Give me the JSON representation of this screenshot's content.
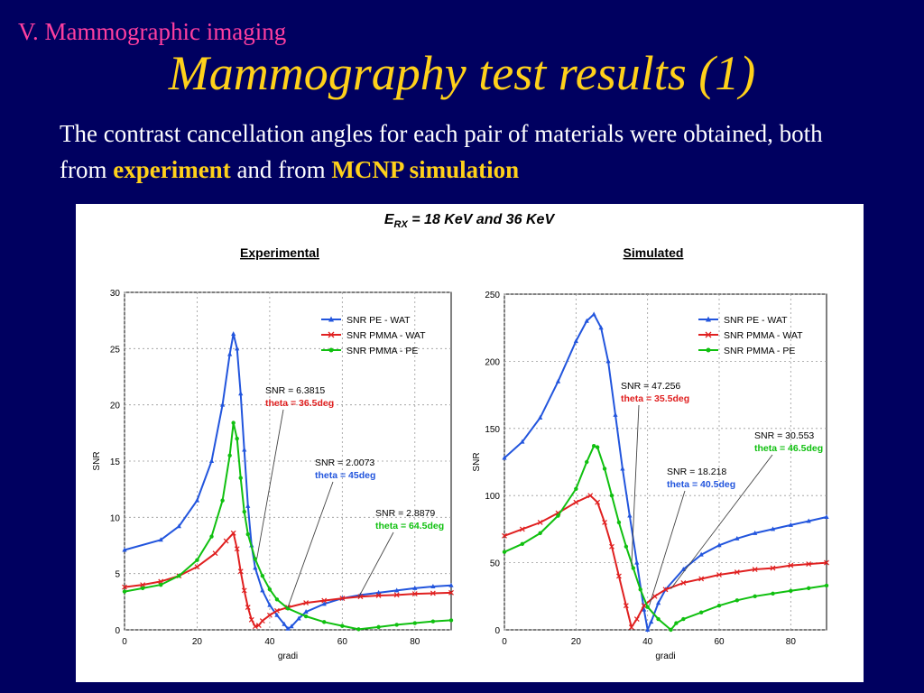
{
  "section_label": "V. Mammographic imaging",
  "slide_title": "Mammography test results (1)",
  "intro": {
    "part1": "The contrast cancellation angles for each pair of materials were obtained, both from ",
    "highlight1": "experiment",
    "part2": " and from ",
    "highlight2": "MCNP simulation"
  },
  "figure": {
    "energy_prefix": "E",
    "energy_sub": "RX",
    "energy_suffix": " = 18 KeV and 36 KeV"
  },
  "colors": {
    "pe_wat": "#2255dd",
    "pmma_wat": "#e02020",
    "pmma_pe": "#10c010"
  },
  "chart_data": [
    {
      "type": "line",
      "title": "Experimental",
      "xlabel": "gradi",
      "ylabel": "SNR",
      "xlim": [
        0,
        90
      ],
      "ylim": [
        0,
        30
      ],
      "xticks": [
        0,
        20,
        40,
        60,
        80
      ],
      "yticks": [
        0,
        5,
        10,
        15,
        20,
        25,
        30
      ],
      "grid": true,
      "legend": "top-right",
      "series": [
        {
          "name": "SNR PE - WAT",
          "color_key": "pe_wat",
          "marker": "triangle",
          "points": [
            [
              0,
              7.1
            ],
            [
              10,
              8.0
            ],
            [
              15,
              9.2
            ],
            [
              20,
              11.5
            ],
            [
              24,
              15
            ],
            [
              27,
              20
            ],
            [
              29,
              24.5
            ],
            [
              30,
              26.3
            ],
            [
              31,
              25
            ],
            [
              32,
              21
            ],
            [
              33,
              16
            ],
            [
              34,
              11
            ],
            [
              35,
              7.5
            ],
            [
              36,
              5.5
            ],
            [
              38,
              3.5
            ],
            [
              40,
              2.2
            ],
            [
              42,
              1.3
            ],
            [
              44,
              0.5
            ],
            [
              45,
              0.1
            ],
            [
              46,
              0.3
            ],
            [
              48,
              1.0
            ],
            [
              50,
              1.6
            ],
            [
              55,
              2.3
            ],
            [
              60,
              2.8
            ],
            [
              65,
              3.1
            ],
            [
              70,
              3.3
            ],
            [
              75,
              3.5
            ],
            [
              80,
              3.7
            ],
            [
              85,
              3.85
            ],
            [
              90,
              3.95
            ]
          ]
        },
        {
          "name": "SNR PMMA - WAT",
          "color_key": "pmma_wat",
          "marker": "x",
          "points": [
            [
              0,
              3.8
            ],
            [
              5,
              4.0
            ],
            [
              10,
              4.3
            ],
            [
              15,
              4.8
            ],
            [
              20,
              5.6
            ],
            [
              25,
              6.8
            ],
            [
              28,
              7.9
            ],
            [
              30,
              8.6
            ],
            [
              31,
              7.2
            ],
            [
              32,
              5.2
            ],
            [
              33,
              3.5
            ],
            [
              34,
              2.0
            ],
            [
              35,
              0.9
            ],
            [
              36,
              0.3
            ],
            [
              37,
              0.4
            ],
            [
              38,
              0.8
            ],
            [
              40,
              1.3
            ],
            [
              42,
              1.7
            ],
            [
              45,
              2.0
            ],
            [
              50,
              2.4
            ],
            [
              55,
              2.6
            ],
            [
              60,
              2.8
            ],
            [
              65,
              2.95
            ],
            [
              70,
              3.05
            ],
            [
              75,
              3.1
            ],
            [
              80,
              3.2
            ],
            [
              85,
              3.25
            ],
            [
              90,
              3.3
            ]
          ]
        },
        {
          "name": "SNR PMMA - PE",
          "color_key": "pmma_pe",
          "marker": "circle",
          "points": [
            [
              0,
              3.4
            ],
            [
              5,
              3.7
            ],
            [
              10,
              4.0
            ],
            [
              15,
              4.8
            ],
            [
              20,
              6.2
            ],
            [
              24,
              8.3
            ],
            [
              27,
              11.5
            ],
            [
              29,
              15.5
            ],
            [
              30,
              18.4
            ],
            [
              31,
              17
            ],
            [
              32,
              13.5
            ],
            [
              33,
              10.5
            ],
            [
              34,
              8.5
            ],
            [
              36,
              6.3
            ],
            [
              38,
              4.8
            ],
            [
              40,
              3.6
            ],
            [
              42,
              2.7
            ],
            [
              45,
              1.9
            ],
            [
              50,
              1.2
            ],
            [
              55,
              0.7
            ],
            [
              60,
              0.35
            ],
            [
              64.5,
              0.05
            ],
            [
              70,
              0.25
            ],
            [
              75,
              0.45
            ],
            [
              80,
              0.6
            ],
            [
              85,
              0.75
            ],
            [
              90,
              0.85
            ]
          ]
        }
      ],
      "annotations": [
        {
          "label": "SNR = 6.3815",
          "detail": "theta = 36.5deg",
          "color_key": "pmma_wat",
          "x": 36.5,
          "y": 6.38
        },
        {
          "label": "SNR = 2.0073",
          "detail": "theta = 45deg",
          "color_key": "pe_wat",
          "x": 45,
          "y": 2.0
        },
        {
          "label": "SNR = 2.8879",
          "detail": "theta = 64.5deg",
          "color_key": "pmma_pe",
          "x": 64.5,
          "y": 2.89
        }
      ]
    },
    {
      "type": "line",
      "title": "Simulated",
      "xlabel": "gradi",
      "ylabel": "SNR",
      "xlim": [
        0,
        90
      ],
      "ylim": [
        0,
        250
      ],
      "xticks": [
        0,
        20,
        40,
        60,
        80
      ],
      "yticks": [
        0,
        50,
        100,
        150,
        200,
        250
      ],
      "grid": true,
      "legend": "top-right",
      "series": [
        {
          "name": "SNR PE - WAT",
          "color_key": "pe_wat",
          "marker": "triangle",
          "points": [
            [
              0,
              128
            ],
            [
              5,
              140
            ],
            [
              10,
              158
            ],
            [
              15,
              185
            ],
            [
              20,
              215
            ],
            [
              23,
              230
            ],
            [
              25,
              235
            ],
            [
              27,
              225
            ],
            [
              29,
              200
            ],
            [
              31,
              160
            ],
            [
              33,
              120
            ],
            [
              35,
              85
            ],
            [
              37,
              50
            ],
            [
              39,
              15
            ],
            [
              40,
              0
            ],
            [
              41,
              6
            ],
            [
              43,
              20
            ],
            [
              45,
              30
            ],
            [
              50,
              45
            ],
            [
              55,
              56
            ],
            [
              60,
              63
            ],
            [
              65,
              68
            ],
            [
              70,
              72
            ],
            [
              75,
              75
            ],
            [
              80,
              78
            ],
            [
              85,
              81
            ],
            [
              90,
              84
            ]
          ]
        },
        {
          "name": "SNR PMMA - WAT",
          "color_key": "pmma_wat",
          "marker": "x",
          "points": [
            [
              0,
              70
            ],
            [
              5,
              75
            ],
            [
              10,
              80
            ],
            [
              15,
              87
            ],
            [
              20,
              95
            ],
            [
              24,
              100
            ],
            [
              26,
              95
            ],
            [
              28,
              80
            ],
            [
              30,
              62
            ],
            [
              32,
              40
            ],
            [
              34,
              18
            ],
            [
              35.5,
              2
            ],
            [
              37,
              8
            ],
            [
              39,
              18
            ],
            [
              42,
              25
            ],
            [
              45,
              30
            ],
            [
              50,
              35
            ],
            [
              55,
              38
            ],
            [
              60,
              41
            ],
            [
              65,
              43
            ],
            [
              70,
              45
            ],
            [
              75,
              46
            ],
            [
              80,
              48
            ],
            [
              85,
              49
            ],
            [
              90,
              50
            ]
          ]
        },
        {
          "name": "SNR PMMA - PE",
          "color_key": "pmma_pe",
          "marker": "circle",
          "points": [
            [
              0,
              58
            ],
            [
              5,
              64
            ],
            [
              10,
              72
            ],
            [
              15,
              85
            ],
            [
              20,
              105
            ],
            [
              23,
              125
            ],
            [
              25,
              137
            ],
            [
              26,
              136
            ],
            [
              28,
              120
            ],
            [
              30,
              100
            ],
            [
              32,
              80
            ],
            [
              34,
              62
            ],
            [
              36,
              46
            ],
            [
              38,
              30
            ],
            [
              40,
              17
            ],
            [
              43,
              8
            ],
            [
              46.5,
              0
            ],
            [
              48,
              5
            ],
            [
              50,
              8
            ],
            [
              55,
              13
            ],
            [
              60,
              18
            ],
            [
              65,
              22
            ],
            [
              70,
              25
            ],
            [
              75,
              27
            ],
            [
              80,
              29
            ],
            [
              85,
              31
            ],
            [
              90,
              33
            ]
          ]
        }
      ],
      "annotations": [
        {
          "label": "SNR = 47.256",
          "detail": "theta = 35.5deg",
          "color_key": "pmma_wat",
          "x": 35.5,
          "y": 47.26
        },
        {
          "label": "SNR = 18.218",
          "detail": "theta = 40.5deg",
          "color_key": "pe_wat",
          "x": 40.5,
          "y": 18.22
        },
        {
          "label": "SNR = 30.553",
          "detail": "theta = 46.5deg",
          "color_key": "pmma_pe",
          "x": 46.5,
          "y": 30.55
        }
      ]
    }
  ]
}
